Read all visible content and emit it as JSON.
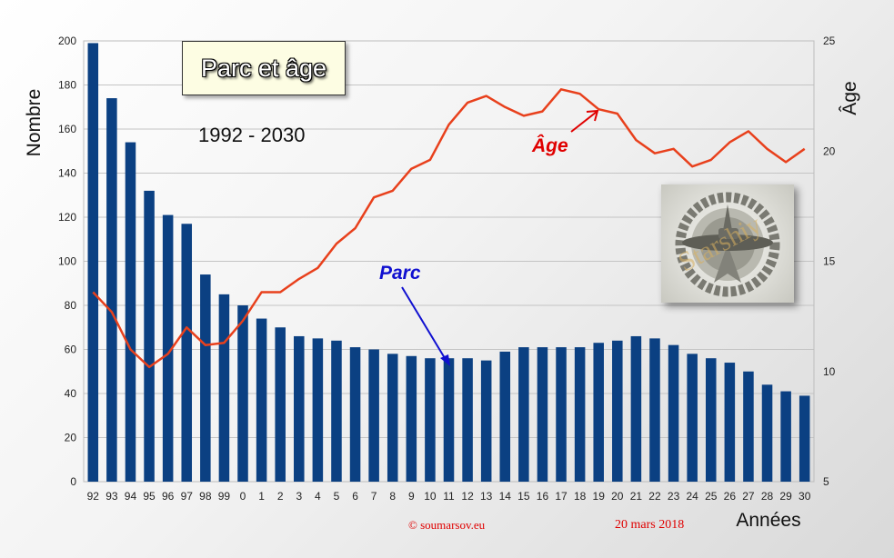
{
  "chart_data": {
    "type": "bar+line",
    "title": "Parc et âge",
    "subtitle": "1992 - 2030",
    "categories": [
      "92",
      "93",
      "94",
      "95",
      "96",
      "97",
      "98",
      "99",
      "0",
      "1",
      "2",
      "3",
      "4",
      "5",
      "6",
      "7",
      "8",
      "9",
      "10",
      "11",
      "12",
      "13",
      "14",
      "15",
      "16",
      "17",
      "18",
      "19",
      "20",
      "21",
      "22",
      "23",
      "24",
      "25",
      "26",
      "27",
      "28",
      "29",
      "30"
    ],
    "xlabel": "Années",
    "ylabel": "Nombre",
    "y2label": "Âge",
    "ylim": [
      0,
      200
    ],
    "y2lim": [
      5,
      25
    ],
    "yticks": [
      0,
      20,
      40,
      60,
      80,
      100,
      120,
      140,
      160,
      180,
      200
    ],
    "y2ticks": [
      5,
      10,
      15,
      20,
      25
    ],
    "grid": true,
    "series": [
      {
        "name": "Parc",
        "kind": "bar",
        "axis": "left",
        "color": "#0b4082",
        "values": [
          199,
          174,
          154,
          132,
          121,
          117,
          94,
          85,
          80,
          74,
          70,
          66,
          65,
          64,
          61,
          60,
          58,
          57,
          56,
          56,
          56,
          55,
          59,
          61,
          61,
          61,
          61,
          63,
          64,
          66,
          65,
          62,
          58,
          56,
          54,
          50,
          44,
          41,
          39
        ]
      },
      {
        "name": "Âge",
        "kind": "line",
        "axis": "right",
        "color": "#e8401c",
        "values": [
          13.6,
          12.7,
          11.0,
          10.2,
          10.8,
          12.0,
          11.2,
          11.3,
          12.3,
          13.6,
          13.6,
          14.2,
          14.7,
          15.8,
          16.5,
          17.9,
          18.2,
          19.2,
          19.6,
          21.2,
          22.2,
          22.5,
          22.0,
          21.6,
          21.8,
          22.8,
          22.6,
          21.9,
          21.7,
          20.5,
          19.9,
          20.1,
          19.3,
          19.6,
          20.4,
          20.9,
          20.1,
          19.5,
          20.1
        ]
      }
    ],
    "annotations": [
      {
        "text": "Parc",
        "color": "#1010d0"
      },
      {
        "text": "Âge",
        "color": "#e00000"
      }
    ]
  },
  "footer": {
    "copyright": "© soumarsov.eu",
    "date": "20 mars 2018"
  },
  "emblem": {
    "icon": "submarine-badge-icon",
    "watermark": "Starshiy"
  }
}
